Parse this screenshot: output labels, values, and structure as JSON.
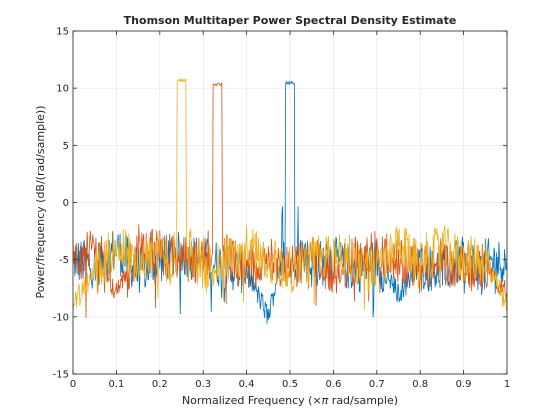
{
  "chart_data": {
    "type": "line",
    "title": "Thomson Multitaper Power Spectral Density Estimate",
    "xlabel_prefix": "Normalized Frequency  (",
    "xlabel_symbol": "×π",
    "xlabel_suffix": " rad/sample)",
    "ylabel": "Power/frequency (dB/(rad/sample))",
    "xlim": [
      0,
      1
    ],
    "ylim": [
      -15,
      15
    ],
    "xticks": [
      0,
      0.1,
      0.2,
      0.3,
      0.4,
      0.5,
      0.6,
      0.7,
      0.8,
      0.9,
      1
    ],
    "xtick_labels": [
      "0",
      "0.1",
      "0.2",
      "0.3",
      "0.4",
      "0.5",
      "0.6",
      "0.7",
      "0.8",
      "0.9",
      "1"
    ],
    "yticks": [
      -15,
      -10,
      -5,
      0,
      5,
      10,
      15
    ],
    "ytick_labels": [
      "-15",
      "-10",
      "-5",
      "0",
      "5",
      "10",
      "15"
    ],
    "grid": true,
    "series": [
      {
        "color": "#0072BD",
        "peak_x": 0.5,
        "peak_y": 10.6,
        "noise_level": -5.2,
        "x": [
          0,
          0.05,
          0.1,
          0.15,
          0.2,
          0.25,
          0.3,
          0.35,
          0.4,
          0.45,
          0.48,
          0.49,
          0.5,
          0.51,
          0.52,
          0.55,
          0.6,
          0.65,
          0.7,
          0.75,
          0.8,
          0.85,
          0.9,
          0.95,
          1
        ],
        "y": [
          -5,
          -5.5,
          -4,
          -6,
          -5,
          -4.5,
          -5,
          -5.5,
          -6,
          -10,
          -5,
          10.4,
          10.6,
          10.4,
          -4,
          -5.5,
          -5,
          -6,
          -5,
          -8,
          -5.5,
          -6,
          -5,
          -6,
          -6
        ]
      },
      {
        "color": "#D95319",
        "peak_x": 0.333,
        "peak_y": 10.5,
        "noise_level": -5.0,
        "x": [
          0,
          0.05,
          0.1,
          0.15,
          0.2,
          0.25,
          0.3,
          0.32,
          0.325,
          0.333,
          0.34,
          0.345,
          0.36,
          0.4,
          0.45,
          0.5,
          0.55,
          0.6,
          0.65,
          0.7,
          0.75,
          0.8,
          0.85,
          0.9,
          0.95,
          1
        ],
        "y": [
          -5,
          -4,
          -8,
          -4,
          -4.5,
          -5,
          -5,
          -4,
          10.2,
          10.5,
          10.2,
          -4,
          -5,
          -6,
          -5,
          -5.5,
          -5,
          -6,
          -5,
          -4.5,
          -5,
          -6,
          -5,
          -6,
          -5.5,
          -8
        ]
      },
      {
        "color": "#EDB120",
        "peak_x": 0.25,
        "peak_y": 10.8,
        "noise_level": -5.0,
        "x": [
          0,
          0.05,
          0.1,
          0.15,
          0.2,
          0.23,
          0.24,
          0.25,
          0.26,
          0.27,
          0.3,
          0.35,
          0.4,
          0.45,
          0.5,
          0.55,
          0.6,
          0.65,
          0.7,
          0.75,
          0.8,
          0.85,
          0.9,
          0.95,
          1
        ],
        "y": [
          -9,
          -6,
          -4,
          -5,
          -4.5,
          -6,
          10.6,
          10.8,
          10.6,
          -4,
          -6,
          -5,
          -4,
          -5,
          -6,
          -5,
          -4.5,
          -5,
          -6,
          -4,
          -5,
          -4,
          -5,
          -5,
          -9
        ]
      }
    ]
  }
}
